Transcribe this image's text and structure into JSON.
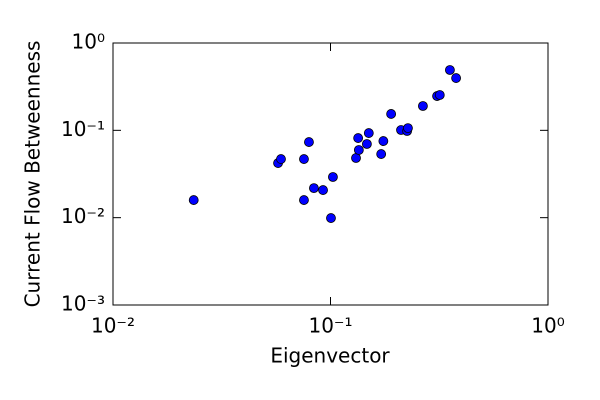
{
  "chart_data": {
    "type": "scatter",
    "x_label": "Eigenvector",
    "y_label": "Current Flow Betweenness",
    "x_scale": "log",
    "y_scale": "log",
    "xlim": [
      0.01,
      1
    ],
    "ylim": [
      0.001,
      1
    ],
    "xticks": [
      {
        "value": 0.01,
        "label": "10⁻²"
      },
      {
        "value": 0.1,
        "label": "10⁻¹"
      },
      {
        "value": 1,
        "label": "10⁰"
      }
    ],
    "yticks": [
      {
        "value": 0.001,
        "label": "10⁻³"
      },
      {
        "value": 0.01,
        "label": "10⁻²"
      },
      {
        "value": 0.1,
        "label": "10⁻¹"
      },
      {
        "value": 1,
        "label": "10⁰"
      }
    ],
    "color": "#0000ff",
    "x": [
      0.0235,
      0.0574,
      0.0592,
      0.0755,
      0.0755,
      0.0796,
      0.0839,
      0.0924,
      0.1026,
      0.1005,
      0.131,
      0.134,
      0.135,
      0.147,
      0.15,
      0.171,
      0.175,
      0.19,
      0.211,
      0.225,
      0.227,
      0.266,
      0.309,
      0.318,
      0.354,
      0.378
    ],
    "values": [
      0.0159,
      0.0422,
      0.0469,
      0.0469,
      0.0159,
      0.0734,
      0.0218,
      0.0207,
      0.0292,
      0.0099,
      0.0482,
      0.0816,
      0.0595,
      0.0697,
      0.0931,
      0.0535,
      0.0754,
      0.154,
      0.1008,
      0.0983,
      0.106,
      0.19,
      0.247,
      0.254,
      0.491,
      0.397
    ]
  }
}
